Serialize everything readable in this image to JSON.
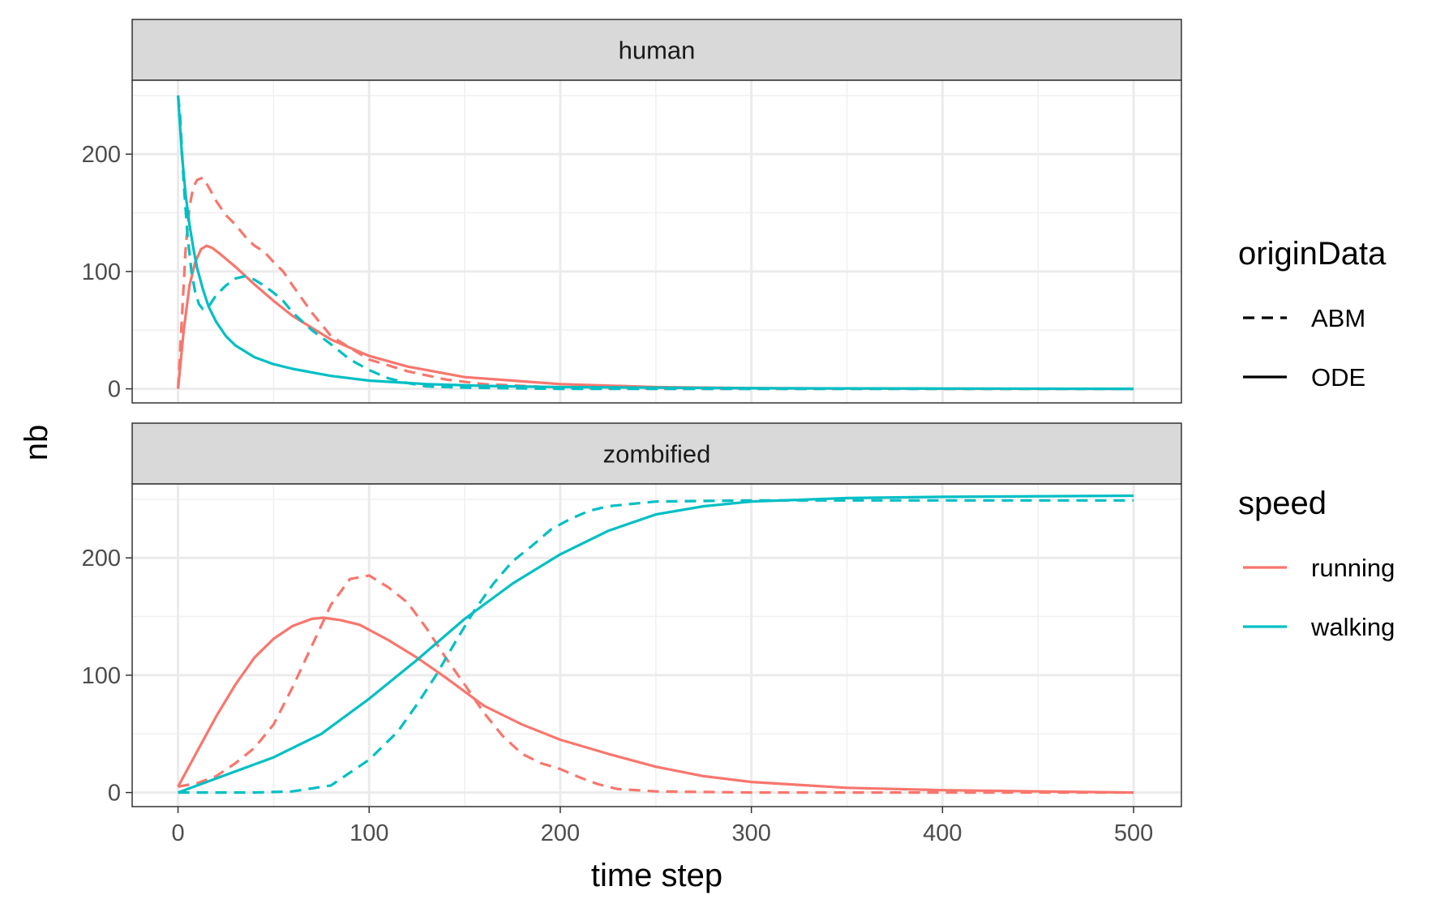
{
  "chart_data": {
    "type": "line",
    "xlabel": "time step",
    "ylabel": "nb",
    "xlim": [
      -24,
      525
    ],
    "x_ticks": [
      0,
      100,
      200,
      300,
      400,
      500
    ],
    "grid": true,
    "legend_position": "right",
    "colors": {
      "running": "#F8766D",
      "walking": "#00BFC4"
    },
    "legends": [
      {
        "title": "originData",
        "entries": [
          {
            "label": "ABM",
            "linetype": "dashed"
          },
          {
            "label": "ODE",
            "linetype": "solid"
          }
        ]
      },
      {
        "title": "speed",
        "entries": [
          {
            "label": "running",
            "color": "#F8766D"
          },
          {
            "label": "walking",
            "color": "#00BFC4"
          }
        ]
      }
    ],
    "panels": [
      {
        "strip": "human",
        "ylim": [
          -12,
          263
        ],
        "y_ticks": [
          0,
          100,
          200
        ],
        "series": [
          {
            "speed": "running",
            "origin": "ODE",
            "points": [
              [
                0,
                0
              ],
              [
                3,
                50
              ],
              [
                6,
                88
              ],
              [
                9,
                108
              ],
              [
                12,
                119
              ],
              [
                15,
                122
              ],
              [
                18,
                120
              ],
              [
                22,
                115
              ],
              [
                30,
                104
              ],
              [
                40,
                89
              ],
              [
                50,
                75
              ],
              [
                60,
                62
              ],
              [
                80,
                42
              ],
              [
                100,
                28
              ],
              [
                120,
                19
              ],
              [
                150,
                10
              ],
              [
                200,
                4
              ],
              [
                250,
                1.5
              ],
              [
                300,
                0.6
              ],
              [
                400,
                0.1
              ],
              [
                500,
                0
              ]
            ]
          },
          {
            "speed": "running",
            "origin": "ABM",
            "points": [
              [
                0,
                0
              ],
              [
                2,
                60
              ],
              [
                4,
                120
              ],
              [
                6,
                155
              ],
              [
                8,
                172
              ],
              [
                10,
                178
              ],
              [
                13,
                180
              ],
              [
                16,
                172
              ],
              [
                20,
                160
              ],
              [
                25,
                148
              ],
              [
                30,
                140
              ],
              [
                35,
                130
              ],
              [
                40,
                122
              ],
              [
                45,
                117
              ],
              [
                50,
                108
              ],
              [
                55,
                100
              ],
              [
                60,
                88
              ],
              [
                70,
                65
              ],
              [
                80,
                45
              ],
              [
                90,
                35
              ],
              [
                100,
                25
              ],
              [
                120,
                15
              ],
              [
                140,
                8
              ],
              [
                160,
                4
              ],
              [
                200,
                1
              ],
              [
                250,
                0
              ],
              [
                500,
                0
              ]
            ]
          },
          {
            "speed": "walking",
            "origin": "ODE",
            "points": [
              [
                0,
                250
              ],
              [
                2,
                200
              ],
              [
                4,
                165
              ],
              [
                6,
                140
              ],
              [
                8,
                120
              ],
              [
                10,
                103
              ],
              [
                13,
                85
              ],
              [
                16,
                70
              ],
              [
                20,
                57
              ],
              [
                25,
                45
              ],
              [
                30,
                37
              ],
              [
                40,
                27
              ],
              [
                50,
                21
              ],
              [
                60,
                17
              ],
              [
                80,
                11
              ],
              [
                100,
                7
              ],
              [
                130,
                4
              ],
              [
                160,
                2.5
              ],
              [
                200,
                1.5
              ],
              [
                300,
                0.5
              ],
              [
                400,
                0.2
              ],
              [
                500,
                0
              ]
            ]
          },
          {
            "speed": "walking",
            "origin": "ABM",
            "points": [
              [
                0,
                250
              ],
              [
                1,
                235
              ],
              [
                3,
                175
              ],
              [
                5,
                130
              ],
              [
                7,
                100
              ],
              [
                9,
                82
              ],
              [
                11,
                72
              ],
              [
                13,
                68
              ],
              [
                16,
                70
              ],
              [
                20,
                80
              ],
              [
                25,
                88
              ],
              [
                30,
                94
              ],
              [
                35,
                96
              ],
              [
                40,
                93
              ],
              [
                45,
                88
              ],
              [
                50,
                82
              ],
              [
                55,
                75
              ],
              [
                60,
                65
              ],
              [
                70,
                50
              ],
              [
                80,
                38
              ],
              [
                90,
                25
              ],
              [
                100,
                16
              ],
              [
                110,
                9
              ],
              [
                120,
                5
              ],
              [
                130,
                2
              ],
              [
                150,
                1
              ],
              [
                200,
                0
              ],
              [
                500,
                0
              ]
            ]
          }
        ]
      },
      {
        "strip": "zombified",
        "ylim": [
          -12,
          263
        ],
        "y_ticks": [
          0,
          100,
          200
        ],
        "series": [
          {
            "speed": "running",
            "origin": "ODE",
            "points": [
              [
                0,
                5
              ],
              [
                10,
                35
              ],
              [
                20,
                65
              ],
              [
                30,
                92
              ],
              [
                40,
                115
              ],
              [
                50,
                131
              ],
              [
                60,
                142
              ],
              [
                70,
                148
              ],
              [
                76,
                149
              ],
              [
                85,
                147
              ],
              [
                95,
                143
              ],
              [
                110,
                130
              ],
              [
                125,
                115
              ],
              [
                140,
                98
              ],
              [
                160,
                74
              ],
              [
                180,
                58
              ],
              [
                200,
                45
              ],
              [
                225,
                33
              ],
              [
                250,
                22
              ],
              [
                275,
                14
              ],
              [
                300,
                9
              ],
              [
                350,
                4
              ],
              [
                400,
                2
              ],
              [
                450,
                1
              ],
              [
                500,
                0
              ]
            ]
          },
          {
            "speed": "running",
            "origin": "ABM",
            "points": [
              [
                0,
                5
              ],
              [
                10,
                8
              ],
              [
                20,
                14
              ],
              [
                30,
                25
              ],
              [
                40,
                38
              ],
              [
                50,
                58
              ],
              [
                60,
                90
              ],
              [
                70,
                125
              ],
              [
                80,
                160
              ],
              [
                90,
                182
              ],
              [
                100,
                185
              ],
              [
                110,
                175
              ],
              [
                120,
                162
              ],
              [
                130,
                140
              ],
              [
                140,
                115
              ],
              [
                150,
                92
              ],
              [
                160,
                68
              ],
              [
                170,
                48
              ],
              [
                180,
                33
              ],
              [
                190,
                25
              ],
              [
                200,
                20
              ],
              [
                210,
                13
              ],
              [
                220,
                7
              ],
              [
                230,
                3
              ],
              [
                250,
                1
              ],
              [
                300,
                0
              ],
              [
                500,
                0
              ]
            ]
          },
          {
            "speed": "walking",
            "origin": "ODE",
            "points": [
              [
                0,
                0
              ],
              [
                25,
                15
              ],
              [
                50,
                30
              ],
              [
                75,
                50
              ],
              [
                100,
                80
              ],
              [
                125,
                113
              ],
              [
                150,
                148
              ],
              [
                175,
                178
              ],
              [
                200,
                203
              ],
              [
                225,
                223
              ],
              [
                250,
                237
              ],
              [
                275,
                244
              ],
              [
                300,
                248
              ],
              [
                350,
                251
              ],
              [
                400,
                252
              ],
              [
                500,
                253
              ]
            ]
          },
          {
            "speed": "walking",
            "origin": "ABM",
            "points": [
              [
                0,
                0
              ],
              [
                20,
                0
              ],
              [
                40,
                0
              ],
              [
                60,
                1
              ],
              [
                80,
                6
              ],
              [
                100,
                28
              ],
              [
                115,
                52
              ],
              [
                125,
                75
              ],
              [
                135,
                100
              ],
              [
                145,
                128
              ],
              [
                155,
                155
              ],
              [
                165,
                178
              ],
              [
                175,
                197
              ],
              [
                185,
                210
              ],
              [
                195,
                224
              ],
              [
                205,
                233
              ],
              [
                215,
                240
              ],
              [
                225,
                244
              ],
              [
                250,
                248
              ],
              [
                300,
                249
              ],
              [
                350,
                249
              ],
              [
                400,
                249
              ],
              [
                500,
                249
              ]
            ]
          }
        ]
      }
    ]
  }
}
